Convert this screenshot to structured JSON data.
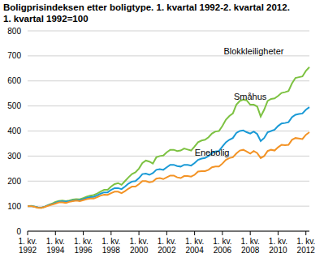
{
  "chart_data": {
    "type": "line",
    "title": "Boligprisindeksen etter boligtype. 1. kvartal 1992-2. kvartal 2012.",
    "subtitle": "1. kvartal 1992=100",
    "categories": [
      "1. kv. 1992",
      null,
      null,
      null,
      null,
      null,
      null,
      null,
      "1. kv. 1994",
      null,
      null,
      null,
      null,
      null,
      null,
      null,
      "1. kv. 1996",
      null,
      null,
      null,
      null,
      null,
      null,
      null,
      "1. kv. 1998",
      null,
      null,
      null,
      null,
      null,
      null,
      null,
      "1. kv. 2000",
      null,
      null,
      null,
      null,
      null,
      null,
      null,
      "1. kv. 2002",
      null,
      null,
      null,
      null,
      null,
      null,
      null,
      "1. kv. 2004",
      null,
      null,
      null,
      null,
      null,
      null,
      null,
      "1. kv. 2006",
      null,
      null,
      null,
      null,
      null,
      null,
      null,
      "1. kv. 2008",
      null,
      null,
      null,
      null,
      null,
      null,
      null,
      "1. kv. 2010",
      null,
      null,
      null,
      null,
      null,
      null,
      null,
      "1. kv. 2012",
      null
    ],
    "series": [
      {
        "name": "Blokkleiligheter",
        "color": "#7dc242",
        "values": [
          100,
          101,
          98,
          94,
          93,
          98,
          105,
          110,
          117,
          121,
          122,
          120,
          122,
          126,
          128,
          127,
          132,
          138,
          142,
          144,
          150,
          158,
          165,
          165,
          178,
          188,
          192,
          185,
          200,
          215,
          228,
          235,
          250,
          272,
          282,
          278,
          270,
          295,
          300,
          302,
          315,
          325,
          325,
          320,
          322,
          330,
          326,
          322,
          338,
          355,
          362,
          365,
          375,
          390,
          398,
          400,
          420,
          445,
          460,
          470,
          505,
          520,
          525,
          522,
          505,
          505,
          498,
          458,
          485,
          520,
          528,
          530,
          540,
          552,
          555,
          560,
          590,
          612,
          615,
          618,
          640,
          655
        ]
      },
      {
        "name": "Småhus",
        "color": "#1a9ad6",
        "values": [
          100,
          100,
          98,
          95,
          94,
          98,
          104,
          108,
          113,
          118,
          119,
          118,
          120,
          122,
          124,
          124,
          128,
          133,
          136,
          137,
          143,
          150,
          155,
          155,
          165,
          172,
          172,
          168,
          178,
          190,
          198,
          200,
          212,
          228,
          230,
          225,
          232,
          245,
          248,
          245,
          255,
          265,
          265,
          260,
          258,
          265,
          265,
          262,
          272,
          285,
          290,
          292,
          300,
          312,
          318,
          320,
          338,
          355,
          365,
          372,
          392,
          400,
          402,
          395,
          390,
          398,
          388,
          360,
          372,
          395,
          400,
          405,
          420,
          430,
          432,
          435,
          455,
          465,
          468,
          470,
          485,
          495
        ]
      },
      {
        "name": "Enebolig",
        "color": "#f39325",
        "values": [
          100,
          100,
          97,
          93,
          93,
          97,
          102,
          106,
          110,
          115,
          115,
          113,
          117,
          120,
          122,
          120,
          124,
          128,
          130,
          130,
          136,
          142,
          146,
          145,
          152,
          158,
          158,
          152,
          160,
          170,
          178,
          178,
          188,
          200,
          200,
          195,
          198,
          210,
          212,
          208,
          215,
          222,
          222,
          215,
          212,
          220,
          220,
          218,
          225,
          238,
          240,
          240,
          245,
          255,
          258,
          258,
          270,
          285,
          292,
          295,
          310,
          322,
          325,
          318,
          310,
          320,
          312,
          292,
          300,
          320,
          325,
          322,
          335,
          345,
          343,
          345,
          365,
          372,
          370,
          368,
          385,
          395
        ]
      }
    ],
    "ylim": [
      0,
      800
    ],
    "yticks": [
      0,
      100,
      200,
      300,
      400,
      500,
      600,
      700,
      800
    ],
    "grid": true
  }
}
